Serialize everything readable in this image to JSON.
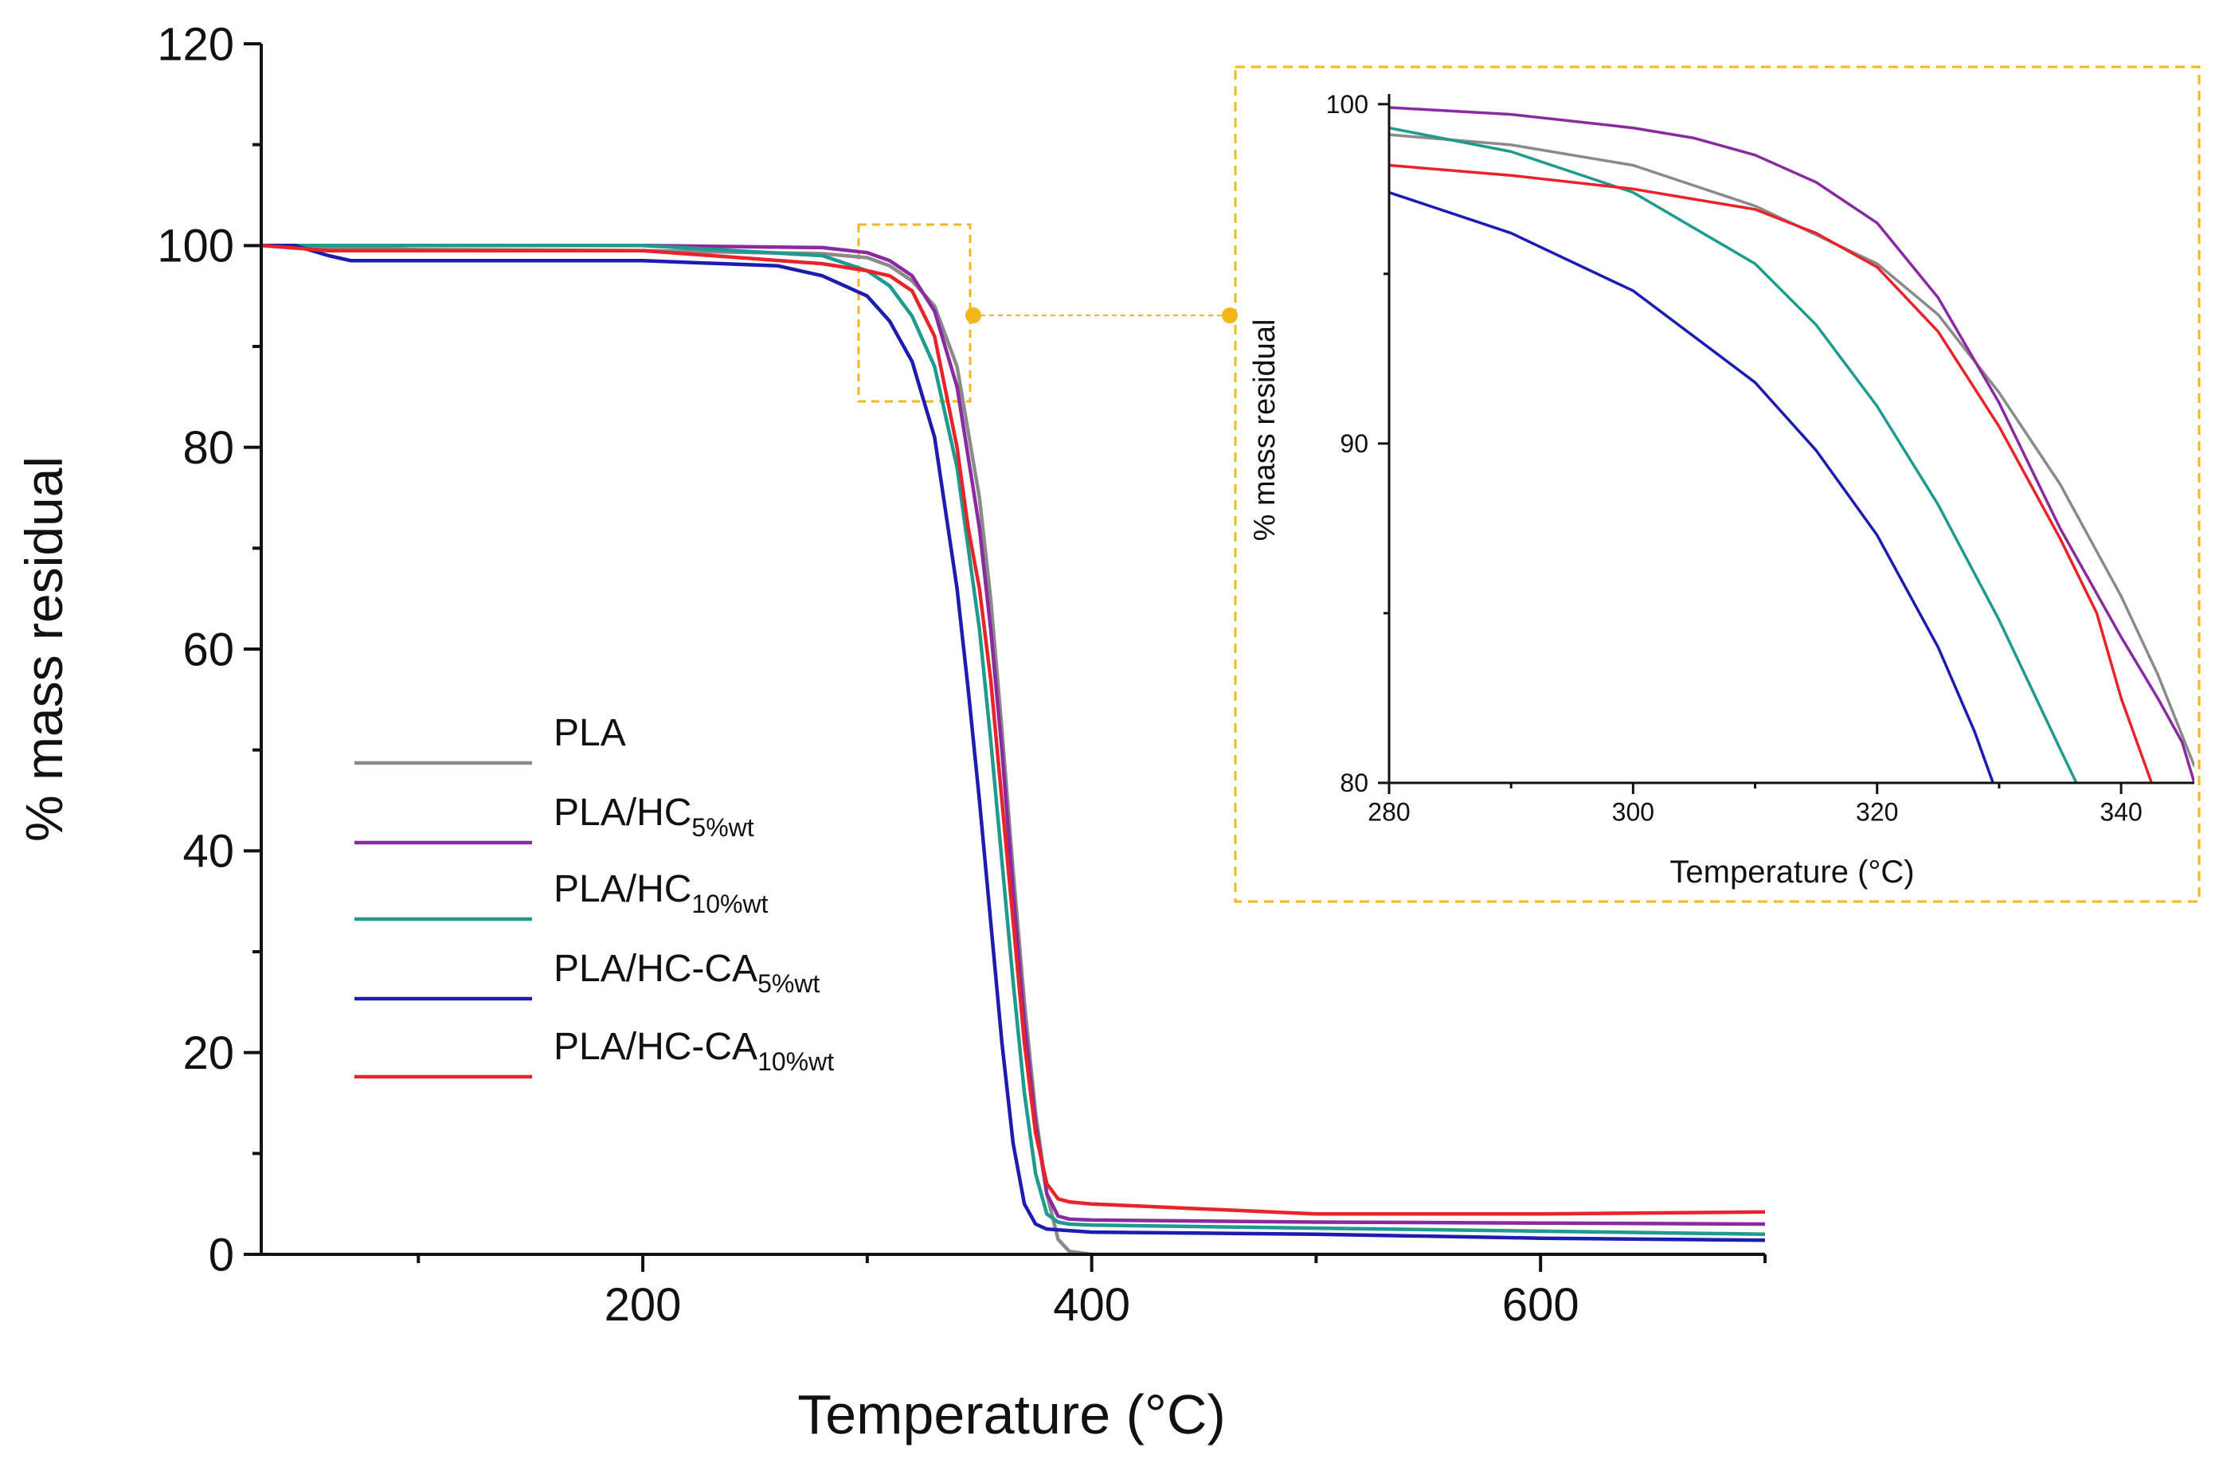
{
  "chart_data": [
    {
      "id": "main",
      "type": "line",
      "xlabel": "Temperature (°C)",
      "ylabel": "% mass residual",
      "xlim": [
        30,
        700
      ],
      "ylim": [
        0,
        120
      ],
      "xticks": [
        200,
        400,
        600
      ],
      "yticks": [
        0,
        20,
        40,
        60,
        80,
        100,
        120
      ],
      "series": [
        {
          "name": "PLA",
          "base": "PLA",
          "sub": "",
          "color": "#8a8a8a",
          "x": [
            30,
            60,
            100,
            200,
            280,
            300,
            310,
            320,
            330,
            340,
            350,
            355,
            360,
            365,
            370,
            375,
            380,
            385,
            390,
            400,
            500,
            600,
            700
          ],
          "y": [
            100,
            99.8,
            99.6,
            99.5,
            99.2,
            98.8,
            98,
            96.5,
            94,
            88,
            75,
            65,
            52,
            38,
            25,
            14,
            6,
            1.5,
            0.3,
            0,
            0,
            0,
            0
          ]
        },
        {
          "name": "PLA/HC5%wt",
          "base": "PLA/HC",
          "sub": "5%wt",
          "color": "#8b2aa0",
          "x": [
            30,
            60,
            100,
            200,
            280,
            300,
            310,
            320,
            330,
            340,
            350,
            355,
            360,
            365,
            370,
            375,
            380,
            385,
            390,
            400,
            500,
            600,
            700
          ],
          "y": [
            100,
            100,
            100,
            100,
            99.8,
            99.3,
            98.5,
            97,
            93.5,
            86,
            72,
            62,
            50,
            36,
            23,
            13,
            6,
            3.8,
            3.5,
            3.4,
            3.2,
            3.1,
            3.0
          ]
        },
        {
          "name": "PLA/HC10%wt",
          "base": "PLA/HC",
          "sub": "10%wt",
          "color": "#1f9a8f",
          "x": [
            30,
            60,
            100,
            200,
            280,
            300,
            310,
            320,
            330,
            340,
            350,
            355,
            360,
            365,
            370,
            375,
            380,
            385,
            390,
            400,
            500,
            600,
            700
          ],
          "y": [
            100,
            100,
            100,
            100,
            99,
            97.5,
            96,
            93,
            88,
            78,
            62,
            51,
            39,
            27,
            16,
            8,
            4,
            3.2,
            3.0,
            2.9,
            2.6,
            2.3,
            2.0
          ]
        },
        {
          "name": "PLA/HC-CA5%wt",
          "base": "PLA/HC-CA",
          "sub": "5%wt",
          "color": "#1c1cb0",
          "x": [
            30,
            45,
            60,
            70,
            80,
            100,
            200,
            260,
            280,
            300,
            310,
            320,
            330,
            340,
            345,
            350,
            355,
            360,
            365,
            370,
            375,
            380,
            400,
            500,
            600,
            700
          ],
          "y": [
            100,
            100,
            99,
            98.5,
            98.5,
            98.5,
            98.5,
            98,
            97,
            95,
            92.5,
            88.5,
            81,
            66,
            56,
            45,
            33,
            21,
            11,
            5,
            3,
            2.5,
            2.2,
            2.0,
            1.6,
            1.4
          ]
        },
        {
          "name": "PLA/HC-CA10%wt",
          "base": "PLA/HC-CA",
          "sub": "10%wt",
          "color": "#e8232a",
          "x": [
            30,
            60,
            100,
            200,
            280,
            300,
            310,
            320,
            330,
            340,
            345,
            350,
            355,
            360,
            365,
            370,
            375,
            380,
            385,
            390,
            400,
            500,
            600,
            700
          ],
          "y": [
            100,
            99.5,
            99.5,
            99.5,
            98.2,
            97.5,
            97,
            95.5,
            91,
            80,
            72,
            66,
            57,
            45,
            33,
            21,
            12,
            7,
            5.5,
            5.2,
            5.0,
            4.0,
            4.0,
            4.2
          ]
        }
      ]
    },
    {
      "id": "inset",
      "type": "line",
      "xlabel": "Temperature (°C)",
      "ylabel": "% mass residual",
      "xlim": [
        280,
        346
      ],
      "ylim": [
        80,
        100.3
      ],
      "xticks": [
        280,
        300,
        320,
        340
      ],
      "yticks": [
        80,
        90,
        100
      ],
      "series": [
        {
          "name": "PLA",
          "color": "#8a8a8a",
          "x": [
            280,
            290,
            300,
            310,
            320,
            325,
            330,
            335,
            340,
            343,
            346
          ],
          "y": [
            99.1,
            98.8,
            98.2,
            97,
            95.3,
            93.8,
            91.5,
            88.8,
            85.5,
            83.2,
            80.5
          ]
        },
        {
          "name": "PLA/HC5%wt",
          "color": "#8b2aa0",
          "x": [
            280,
            290,
            300,
            305,
            310,
            315,
            320,
            325,
            330,
            335,
            340,
            343,
            345,
            346
          ],
          "y": [
            99.9,
            99.7,
            99.3,
            99,
            98.5,
            97.7,
            96.5,
            94.3,
            91.2,
            87.5,
            84.3,
            82.5,
            81.2,
            80
          ]
        },
        {
          "name": "PLA/HC10%wt",
          "color": "#1f9a8f",
          "x": [
            280,
            290,
            300,
            310,
            315,
            320,
            325,
            330,
            335,
            337
          ],
          "y": [
            99.3,
            98.6,
            97.4,
            95.3,
            93.5,
            91.1,
            88.2,
            84.8,
            81,
            79.5
          ]
        },
        {
          "name": "PLA/HC-CA5%wt",
          "color": "#1c1cb0",
          "x": [
            280,
            290,
            300,
            310,
            315,
            320,
            325,
            328,
            330
          ],
          "y": [
            97.4,
            96.2,
            94.5,
            91.8,
            89.8,
            87.3,
            84,
            81.5,
            79.5
          ]
        },
        {
          "name": "PLA/HC-CA10%wt",
          "color": "#e8232a",
          "x": [
            280,
            290,
            300,
            305,
            310,
            315,
            320,
            325,
            330,
            335,
            338,
            340,
            342,
            343
          ],
          "y": [
            98.2,
            97.9,
            97.5,
            97.2,
            96.9,
            96.2,
            95.2,
            93.3,
            90.5,
            87.2,
            85,
            82.5,
            80.5,
            79.5
          ]
        }
      ]
    }
  ]
}
